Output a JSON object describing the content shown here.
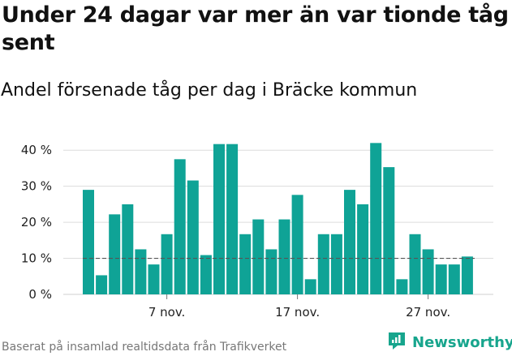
{
  "title": "Under 24 dagar var mer än var tionde tåg sent",
  "subtitle": "Andel försenade tåg per dag i Bräcke kommun",
  "source": "Baserat på insamlad realtidsdata från Trafikverket",
  "brand": {
    "name": "Newsworthy",
    "icon": "newsworthy-logo-icon",
    "color": "#17a58d"
  },
  "colors": {
    "bar": "#0fa396",
    "grid": "#dcdcdc",
    "reference_line": "#555555"
  },
  "chart_data": {
    "type": "bar",
    "title": "Under 24 dagar var mer än var tionde tåg sent",
    "subtitle": "Andel försenade tåg per dag i Bräcke kommun",
    "x_start_date": "2023-11-01",
    "x_ticks": [
      {
        "day_index": 6,
        "label": "7 nov."
      },
      {
        "day_index": 16,
        "label": "17 nov."
      },
      {
        "day_index": 26,
        "label": "27 nov."
      }
    ],
    "y_ticks": [
      0,
      10,
      20,
      30,
      40
    ],
    "y_tick_labels": [
      "0 %",
      "10 %",
      "20 %",
      "30 %",
      "40 %"
    ],
    "ylim": [
      0,
      45
    ],
    "unit": "%",
    "grid": true,
    "reference_line": 10,
    "values": [
      29,
      5.3,
      22.2,
      25,
      12.5,
      8.3,
      16.7,
      37.5,
      31.6,
      10.9,
      41.7,
      41.7,
      16.7,
      20.8,
      12.5,
      20.8,
      27.6,
      4.2,
      16.7,
      16.7,
      29,
      25,
      42,
      35.3,
      4.2,
      16.7,
      12.5,
      8.3,
      8.3,
      10.5
    ]
  }
}
